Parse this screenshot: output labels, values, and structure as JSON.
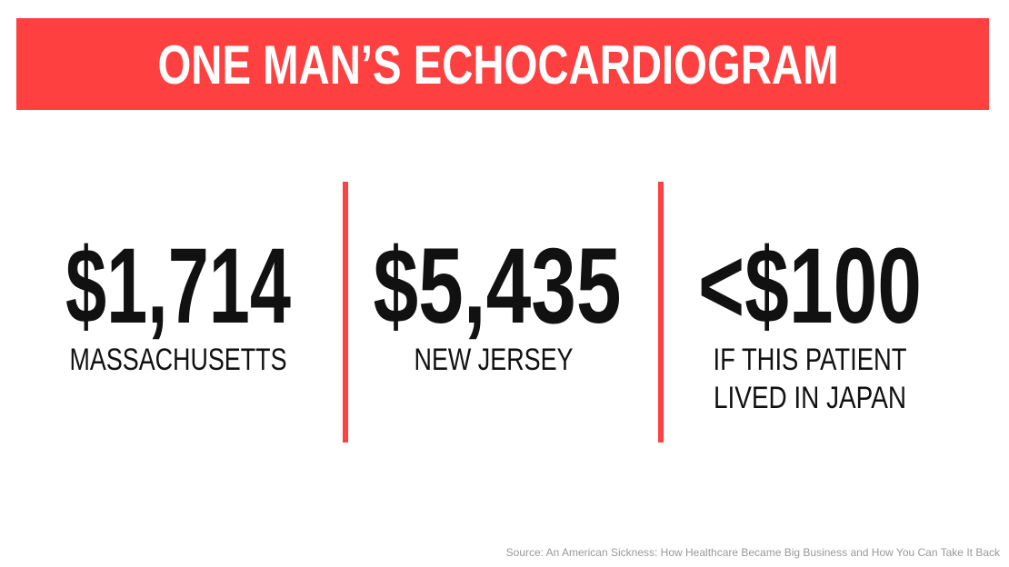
{
  "header": {
    "title": "ONE MAN’S ECHOCARDIOGRAM"
  },
  "stats": [
    {
      "value": "$1,714",
      "label": [
        "MASSACHUSETTS"
      ]
    },
    {
      "value": "$5,435",
      "label": [
        "NEW JERSEY"
      ]
    },
    {
      "value": "<$100",
      "label": [
        "IF THIS PATIENT",
        "LIVED IN JAPAN"
      ]
    }
  ],
  "footer": {
    "source": "Source: An American Sickness: How Healthcare Became Big Business and How You Can Take It Back"
  }
}
